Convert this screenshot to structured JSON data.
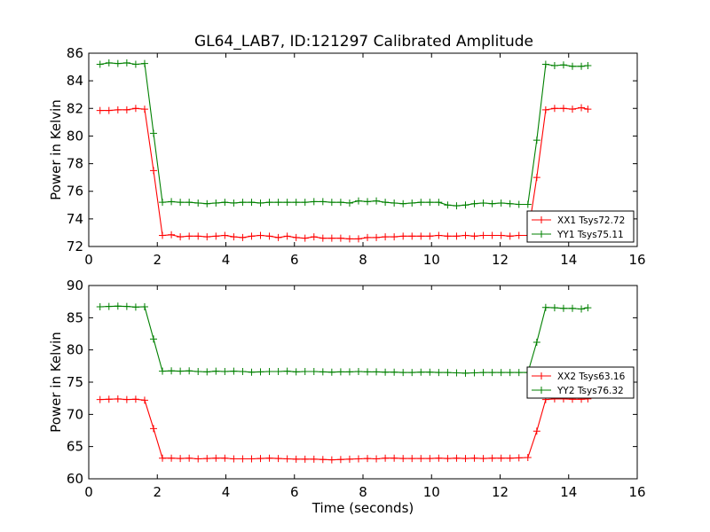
{
  "figure_title": "GL64_LAB7, ID:121297 Calibrated Amplitude",
  "chart_data": [
    {
      "type": "line",
      "title": "GL64_LAB7, ID:121297 Calibrated Amplitude",
      "xlabel": "",
      "ylabel": "Power in Kelvin",
      "xlim": [
        0,
        16
      ],
      "ylim": [
        72,
        86
      ],
      "xticks": [
        0,
        2,
        4,
        6,
        8,
        10,
        12,
        14,
        16
      ],
      "yticks": [
        72,
        74,
        76,
        78,
        80,
        82,
        84,
        86
      ],
      "x": [
        0.33,
        0.59,
        0.85,
        1.11,
        1.37,
        1.63,
        1.89,
        2.15,
        2.41,
        2.67,
        2.93,
        3.19,
        3.45,
        3.71,
        3.97,
        4.23,
        4.49,
        4.75,
        5.01,
        5.27,
        5.53,
        5.79,
        6.05,
        6.31,
        6.57,
        6.83,
        7.09,
        7.35,
        7.61,
        7.87,
        8.13,
        8.39,
        8.65,
        8.91,
        9.17,
        9.43,
        9.69,
        9.95,
        10.21,
        10.47,
        10.73,
        10.99,
        11.25,
        11.51,
        11.77,
        12.03,
        12.29,
        12.55,
        12.81,
        13.07,
        13.33,
        13.59,
        13.85,
        14.11,
        14.37,
        14.56
      ],
      "legend_position": "lower right",
      "grid": false,
      "series": [
        {
          "name": "XX1 Tsys72.72",
          "color": "#ff0000",
          "values": [
            81.85,
            81.85,
            81.9,
            81.9,
            82.0,
            81.95,
            77.5,
            72.8,
            72.85,
            72.7,
            72.75,
            72.75,
            72.7,
            72.75,
            72.8,
            72.7,
            72.65,
            72.75,
            72.8,
            72.75,
            72.65,
            72.75,
            72.65,
            72.6,
            72.7,
            72.6,
            72.6,
            72.6,
            72.55,
            72.55,
            72.65,
            72.65,
            72.7,
            72.7,
            72.75,
            72.75,
            72.75,
            72.75,
            72.8,
            72.75,
            72.75,
            72.8,
            72.75,
            72.8,
            72.8,
            72.8,
            72.75,
            72.8,
            72.8,
            77.0,
            81.9,
            82.0,
            82.0,
            81.95,
            82.05,
            81.95
          ]
        },
        {
          "name": "YY1 Tsys75.11",
          "color": "#008000",
          "values": [
            85.2,
            85.3,
            85.25,
            85.3,
            85.2,
            85.25,
            80.2,
            75.2,
            75.25,
            75.2,
            75.2,
            75.15,
            75.1,
            75.15,
            75.2,
            75.15,
            75.2,
            75.2,
            75.15,
            75.2,
            75.2,
            75.2,
            75.2,
            75.2,
            75.25,
            75.25,
            75.2,
            75.2,
            75.15,
            75.3,
            75.25,
            75.3,
            75.2,
            75.15,
            75.1,
            75.15,
            75.2,
            75.2,
            75.2,
            75.0,
            74.95,
            75.0,
            75.1,
            75.15,
            75.1,
            75.15,
            75.1,
            75.05,
            75.05,
            79.7,
            85.2,
            85.1,
            85.15,
            85.05,
            85.05,
            85.1
          ]
        }
      ]
    },
    {
      "type": "line",
      "title": "",
      "xlabel": "Time (seconds)",
      "ylabel": "Power in Kelvin",
      "xlim": [
        0,
        16
      ],
      "ylim": [
        60,
        90
      ],
      "xticks": [
        0,
        2,
        4,
        6,
        8,
        10,
        12,
        14,
        16
      ],
      "yticks": [
        60,
        65,
        70,
        75,
        80,
        85,
        90
      ],
      "x": [
        0.33,
        0.59,
        0.85,
        1.11,
        1.37,
        1.63,
        1.89,
        2.15,
        2.41,
        2.67,
        2.93,
        3.19,
        3.45,
        3.71,
        3.97,
        4.23,
        4.49,
        4.75,
        5.01,
        5.27,
        5.53,
        5.79,
        6.05,
        6.31,
        6.57,
        6.83,
        7.09,
        7.35,
        7.61,
        7.87,
        8.13,
        8.39,
        8.65,
        8.91,
        9.17,
        9.43,
        9.69,
        9.95,
        10.21,
        10.47,
        10.73,
        10.99,
        11.25,
        11.51,
        11.77,
        12.03,
        12.29,
        12.55,
        12.81,
        13.07,
        13.33,
        13.59,
        13.85,
        14.11,
        14.37,
        14.56
      ],
      "legend_position": "center right",
      "grid": false,
      "series": [
        {
          "name": "XX2 Tsys63.16",
          "color": "#ff0000",
          "values": [
            72.3,
            72.35,
            72.4,
            72.3,
            72.35,
            72.2,
            67.8,
            63.2,
            63.2,
            63.15,
            63.2,
            63.1,
            63.15,
            63.2,
            63.2,
            63.1,
            63.1,
            63.1,
            63.15,
            63.2,
            63.15,
            63.1,
            63.05,
            63.05,
            63.05,
            63.0,
            62.95,
            63.0,
            63.05,
            63.1,
            63.15,
            63.1,
            63.2,
            63.2,
            63.15,
            63.15,
            63.15,
            63.15,
            63.2,
            63.15,
            63.2,
            63.15,
            63.2,
            63.15,
            63.2,
            63.2,
            63.2,
            63.25,
            63.3,
            67.4,
            72.3,
            72.4,
            72.4,
            72.35,
            72.35,
            72.4
          ]
        },
        {
          "name": "YY2 Tsys76.32",
          "color": "#008000",
          "values": [
            86.7,
            86.75,
            86.8,
            86.75,
            86.65,
            86.7,
            81.7,
            76.7,
            76.75,
            76.7,
            76.75,
            76.65,
            76.6,
            76.7,
            76.65,
            76.7,
            76.65,
            76.55,
            76.6,
            76.65,
            76.65,
            76.7,
            76.6,
            76.65,
            76.65,
            76.6,
            76.55,
            76.6,
            76.6,
            76.65,
            76.6,
            76.6,
            76.55,
            76.55,
            76.5,
            76.5,
            76.55,
            76.55,
            76.5,
            76.5,
            76.45,
            76.4,
            76.45,
            76.5,
            76.5,
            76.5,
            76.5,
            76.5,
            76.5,
            81.2,
            86.6,
            86.55,
            86.45,
            86.45,
            86.35,
            86.55
          ]
        }
      ]
    }
  ]
}
